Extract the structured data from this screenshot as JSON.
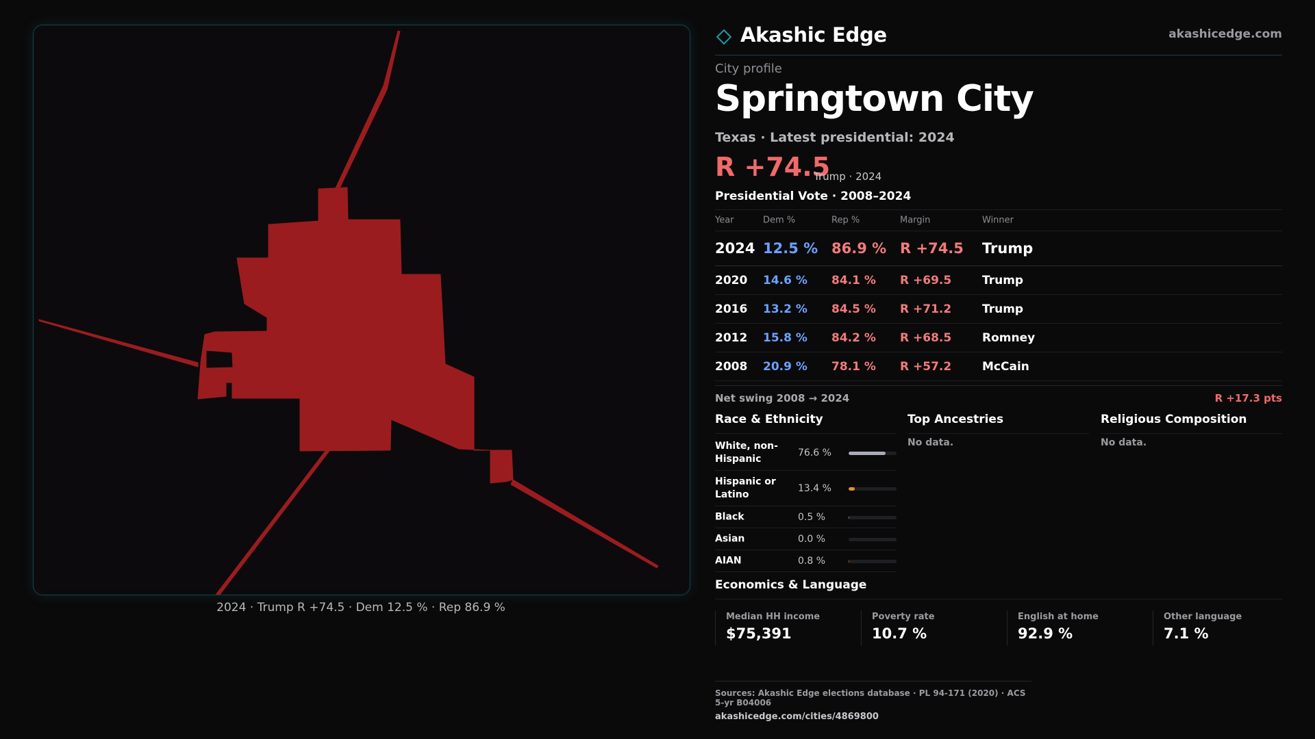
{
  "colors": {
    "accent": "#1a9aa8",
    "republican": "#f06a6a",
    "democrat": "#6aa2ff",
    "map_fill": "#9b1c1f"
  },
  "map": {
    "caption": "2024 · Trump R +74.5 · Dem 12.5 % · Rep 86.9 %"
  },
  "brand": {
    "logo_icon": "diamond-outline-icon",
    "name": "Akashic Edge",
    "domain": "akashicedge.com"
  },
  "profile": {
    "eyebrow": "City profile",
    "city": "Springtown City",
    "subline": "Texas · Latest presidential: 2024",
    "margin": "R +74.5",
    "margin_note": "Trump · 2024"
  },
  "vote": {
    "title": "Presidential Vote · 2008–2024",
    "headers": {
      "year": "Year",
      "dem": "Dem %",
      "rep": "Rep %",
      "margin": "Margin",
      "winner": "Winner"
    },
    "rows": [
      {
        "year": "2024",
        "dem": "12.5 %",
        "rep": "86.9 %",
        "margin": "R +74.5",
        "winner": "Trump"
      },
      {
        "year": "2020",
        "dem": "14.6 %",
        "rep": "84.1 %",
        "margin": "R +69.5",
        "winner": "Trump"
      },
      {
        "year": "2016",
        "dem": "13.2 %",
        "rep": "84.5 %",
        "margin": "R +71.2",
        "winner": "Trump"
      },
      {
        "year": "2012",
        "dem": "15.8 %",
        "rep": "84.2 %",
        "margin": "R +68.5",
        "winner": "Romney"
      },
      {
        "year": "2008",
        "dem": "20.9 %",
        "rep": "78.1 %",
        "margin": "R +57.2",
        "winner": "McCain"
      }
    ],
    "swing_label": "Net swing 2008 → 2024",
    "swing_value": "R +17.3 pts"
  },
  "race": {
    "title": "Race & Ethnicity",
    "items": [
      {
        "label": "White, non-Hispanic",
        "value": "76.6 %",
        "share": 0.766,
        "color": "#a9abb8"
      },
      {
        "label": "Hispanic or Latino",
        "value": "13.4 %",
        "share": 0.134,
        "color": "#e0902a"
      },
      {
        "label": "Black",
        "value": "0.5 %",
        "share": 0.005,
        "color": "#8a8fa0"
      },
      {
        "label": "Asian",
        "value": "0.0 %",
        "share": 0.0,
        "color": "#8a8fa0"
      },
      {
        "label": "AIAN",
        "value": "0.8 %",
        "share": 0.008,
        "color": "#c0692a"
      }
    ]
  },
  "ancestries": {
    "title": "Top Ancestries",
    "empty": "No data."
  },
  "religion": {
    "title": "Religious Composition",
    "empty": "No data."
  },
  "economics": {
    "title": "Economics & Language",
    "cards": [
      {
        "label": "Median HH income",
        "value": "$75,391"
      },
      {
        "label": "Poverty rate",
        "value": "10.7 %"
      },
      {
        "label": "English at home",
        "value": "92.9 %"
      },
      {
        "label": "Other language",
        "value": "7.1 %"
      }
    ]
  },
  "sources": {
    "line": "Sources: Akashic Edge elections database · PL 94-171 (2020) · ACS 5-yr B04006",
    "url": "akashicedge.com/cities/4869800"
  }
}
